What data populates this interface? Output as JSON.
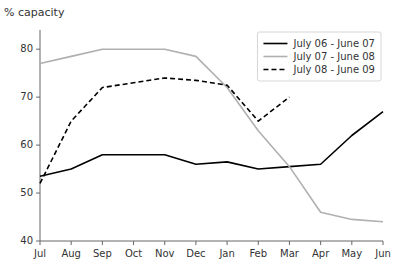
{
  "chart_data": {
    "type": "line",
    "y_label": "% capacity",
    "categories": [
      "Jul",
      "Aug",
      "Sep",
      "Oct",
      "Nov",
      "Dec",
      "Jan",
      "Feb",
      "Mar",
      "Apr",
      "May",
      "Jun"
    ],
    "series": [
      {
        "name": "July 06 - June 07",
        "color": "#000000",
        "line_style": "solid",
        "values": [
          53.5,
          55.0,
          58.0,
          58.0,
          58.0,
          56.0,
          56.5,
          55.0,
          55.5,
          56.0,
          62.0,
          67.0
        ]
      },
      {
        "name": "July 07 - June 08",
        "color": "#b0b0b0",
        "line_style": "solid",
        "values": [
          77.0,
          78.5,
          80.0,
          80.0,
          80.0,
          78.5,
          72.0,
          63.0,
          55.5,
          46.0,
          44.5,
          44.0
        ]
      },
      {
        "name": "July 08 - June 09",
        "color": "#000000",
        "line_style": "dashed",
        "values": [
          52.0,
          65.0,
          72.0,
          73.0,
          74.0,
          73.5,
          72.5,
          65.0,
          70.0,
          null,
          null,
          null
        ]
      }
    ],
    "ylim": [
      40,
      84
    ],
    "yticks": [
      40,
      50,
      60,
      70,
      80
    ],
    "grid": false,
    "legend": "upper right"
  }
}
